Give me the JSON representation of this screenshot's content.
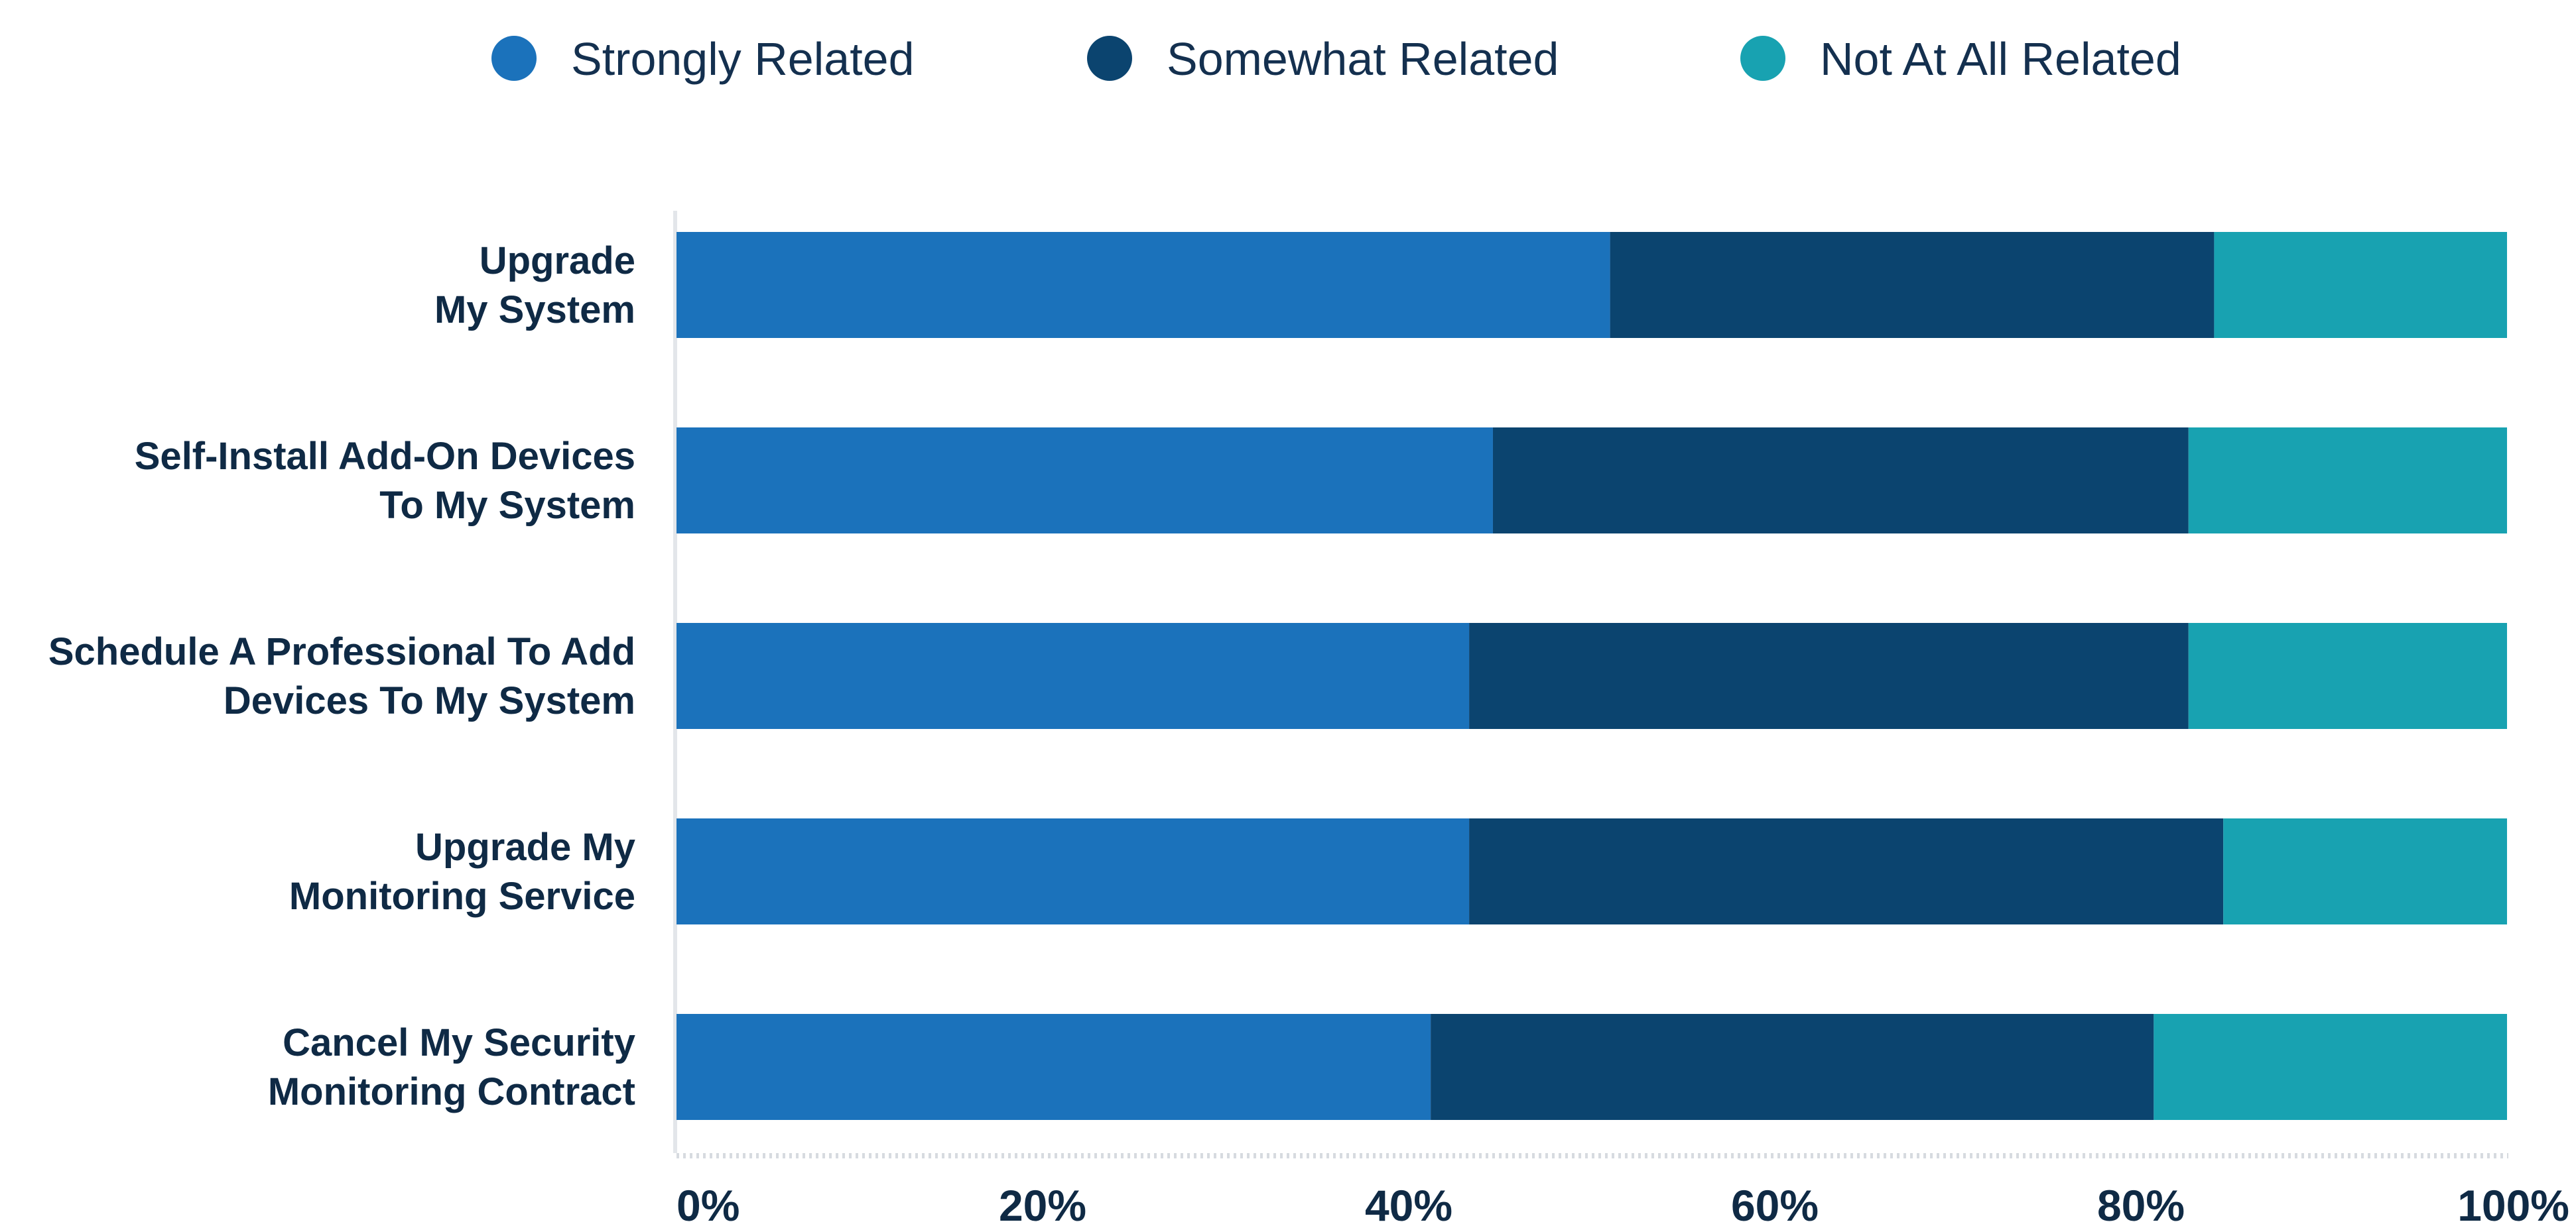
{
  "chart_data": {
    "type": "bar",
    "orientation": "horizontal",
    "stacked": true,
    "categories": [
      [
        "Upgrade",
        "My System"
      ],
      [
        "Self-Install Add-On Devices",
        "To My System"
      ],
      [
        "Schedule A Professional To Add",
        "Devices To My System"
      ],
      [
        "Upgrade My",
        "Monitoring Service"
      ],
      [
        "Cancel My Security",
        "Monitoring Contract"
      ]
    ],
    "series": [
      {
        "name": "Strongly Related",
        "color": "#1b72bb",
        "values": [
          51,
          44.6,
          43.3,
          43.3,
          41.2
        ]
      },
      {
        "name": "Somewhat Related",
        "color": "#0b446f",
        "values": [
          33,
          38,
          39.3,
          41.2,
          39.5
        ]
      },
      {
        "name": "Not At All Related",
        "color": "#18a2b1",
        "values": [
          16,
          17.4,
          17.4,
          15.5,
          19.3
        ]
      }
    ],
    "xlim": [
      0,
      100
    ],
    "x_ticks": [
      "0%",
      "20%",
      "40%",
      "60%",
      "80%",
      "100%"
    ],
    "legend_position": "top",
    "grid": false
  }
}
